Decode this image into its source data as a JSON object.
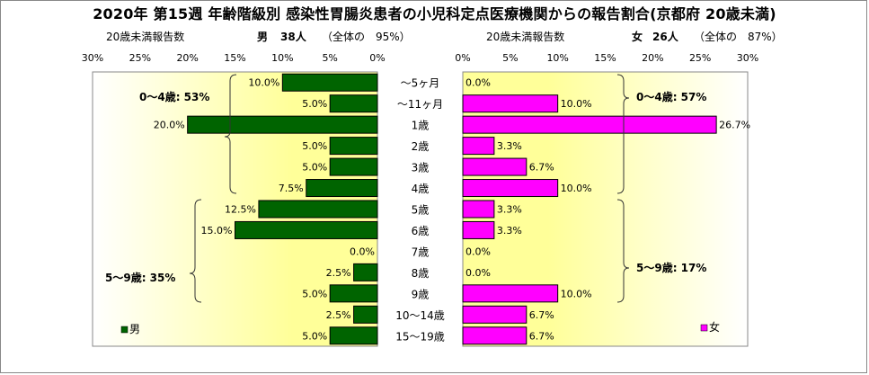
{
  "title": "2020年 第15週 年齢階級別 感染性胃腸炎患者の小児科定点医療機関からの報告割合(京都府 20歳未満)",
  "left": {
    "sub_label": "20歳未満報告数",
    "sex": "男",
    "count": "38人",
    "share": "（全体の　95%）",
    "legend": "男",
    "group1": "0～4歳: 53%",
    "group2": "5～9歳: 35%"
  },
  "right": {
    "sub_label": "20歳未満報告数",
    "sex": "女",
    "count": "26人",
    "share": "（全体の　87%）",
    "legend": "女",
    "group1": "0～4歳: 57%",
    "group2": "5～9歳: 17%"
  },
  "colors": {
    "male": "#006400",
    "female": "#ff00ff",
    "bg_yellow": "#ffff99"
  },
  "chart_data": [
    {
      "type": "bar",
      "orientation": "horizontal",
      "direction": "right-to-left",
      "series": [
        {
          "name": "男",
          "values": [
            10.0,
            5.0,
            20.0,
            5.0,
            5.0,
            7.5,
            12.5,
            15.0,
            0.0,
            2.5,
            5.0,
            2.5,
            5.0
          ]
        }
      ],
      "data_labels": [
        "10.0%",
        "5.0%",
        "20.0%",
        "5.0%",
        "5.0%",
        "7.5%",
        "12.5%",
        "15.0%",
        "0.0%",
        "2.5%",
        "5.0%",
        "2.5%",
        "5.0%"
      ],
      "xlim": [
        0,
        30
      ],
      "ticks": [
        "0%",
        "5%",
        "10%",
        "15%",
        "20%",
        "25%",
        "30%"
      ],
      "legend_position": "bottom-left"
    },
    {
      "type": "bar",
      "orientation": "horizontal",
      "direction": "left-to-right",
      "series": [
        {
          "name": "女",
          "values": [
            0.0,
            10.0,
            26.7,
            3.3,
            6.7,
            10.0,
            3.3,
            3.3,
            0.0,
            0.0,
            10.0,
            6.7,
            6.7
          ]
        }
      ],
      "data_labels": [
        "0.0%",
        "10.0%",
        "26.7%",
        "3.3%",
        "6.7%",
        "10.0%",
        "3.3%",
        "3.3%",
        "0.0%",
        "0.0%",
        "10.0%",
        "6.7%",
        "6.7%"
      ],
      "xlim": [
        0,
        30
      ],
      "ticks": [
        "0%",
        "5%",
        "10%",
        "15%",
        "20%",
        "25%",
        "30%"
      ],
      "legend_position": "bottom-right"
    }
  ],
  "categories": [
    "～5ヶ月",
    "～11ヶ月",
    "1歳",
    "2歳",
    "3歳",
    "4歳",
    "5歳",
    "6歳",
    "7歳",
    "8歳",
    "9歳",
    "10～14歳",
    "15～19歳"
  ]
}
